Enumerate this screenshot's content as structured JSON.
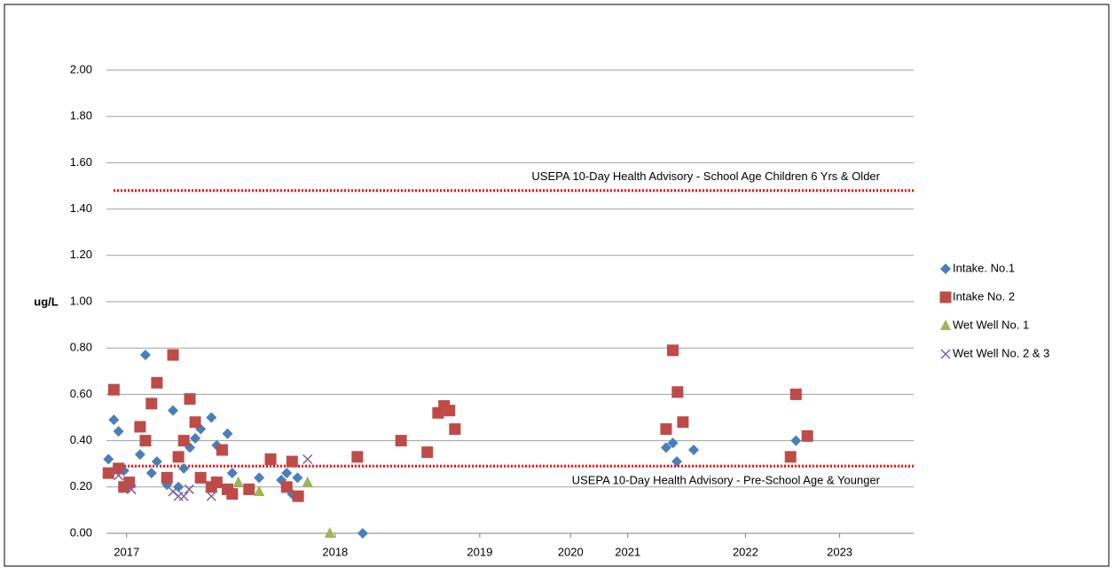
{
  "chart_data": {
    "type": "scatter",
    "y_label": "ug/L",
    "xlim": [
      0,
      120
    ],
    "ylim": [
      0,
      2
    ],
    "xticks": [
      {
        "value": 3,
        "label": "2017"
      },
      {
        "value": 34,
        "label": "2018"
      },
      {
        "value": 55.5,
        "label": "2019"
      },
      {
        "value": 69,
        "label": "2020"
      },
      {
        "value": 77.5,
        "label": "2021"
      },
      {
        "value": 95,
        "label": "2022"
      },
      {
        "value": 109,
        "label": "2023"
      }
    ],
    "yticks": [
      {
        "value": 0,
        "label": "0.00"
      },
      {
        "value": 0.2,
        "label": "0.20"
      },
      {
        "value": 0.4,
        "label": "0.40"
      },
      {
        "value": 0.6,
        "label": "0.60"
      },
      {
        "value": 0.8,
        "label": "0.80"
      },
      {
        "value": 1,
        "label": "1.00"
      },
      {
        "value": 1.2,
        "label": "1.20"
      },
      {
        "value": 1.4,
        "label": "1.40"
      },
      {
        "value": 1.6,
        "label": "1.60"
      },
      {
        "value": 1.8,
        "label": "1.80"
      },
      {
        "value": 2,
        "label": "2.00"
      }
    ],
    "grid": true,
    "legend": "right",
    "reference_lines": [
      {
        "value": 1.48,
        "label": "USEPA 10-Day Health Advisory  - School Age Children 6 Yrs & Older",
        "label_position": "above",
        "color": "#ff0000"
      },
      {
        "value": 0.29,
        "label": "USEPA 10-Day Health Advisory  - Pre-School Age & Younger",
        "label_position": "below",
        "color": "#ff0000"
      }
    ],
    "series": [
      {
        "name": "Intake. No.1",
        "color": "#4a7ebb",
        "marker": "diamond",
        "x": [
          0.3,
          1.1,
          1.8,
          2.6,
          5,
          5.8,
          6.7,
          7.5,
          9.9,
          9,
          10.7,
          11.5,
          12.4,
          13.2,
          14,
          15.6,
          16.4,
          18,
          18.7,
          22.7,
          26,
          26.8,
          27.6,
          28.4,
          38.1,
          83.2,
          84.2,
          84.8,
          87.3,
          102.5
        ],
        "values": [
          0.32,
          0.49,
          0.44,
          0.27,
          0.34,
          0.77,
          0.26,
          0.31,
          0.53,
          0.21,
          0.2,
          0.28,
          0.37,
          0.41,
          0.45,
          0.5,
          0.38,
          0.43,
          0.26,
          0.24,
          0.23,
          0.26,
          0.17,
          0.24,
          0,
          0.37,
          0.39,
          0.31,
          0.36,
          0.4
        ]
      },
      {
        "name": "Intake No. 2",
        "color": "#be4b48",
        "marker": "square",
        "x": [
          0.3,
          1.1,
          1.8,
          2.6,
          3.4,
          5,
          5.8,
          6.7,
          7.5,
          9,
          9.9,
          10.7,
          11.5,
          12.4,
          13.2,
          14,
          15.6,
          16.4,
          17.2,
          18,
          18.7,
          21.2,
          24.4,
          26.8,
          27.6,
          28.5,
          37.3,
          43.8,
          47.7,
          49.3,
          50.2,
          51,
          51.8,
          83.2,
          84.2,
          84.9,
          85.7,
          101.7,
          102.5,
          104.2
        ],
        "values": [
          0.26,
          0.62,
          0.28,
          0.2,
          0.22,
          0.46,
          0.4,
          0.56,
          0.65,
          0.24,
          0.77,
          0.33,
          0.4,
          0.58,
          0.48,
          0.24,
          0.2,
          0.22,
          0.36,
          0.19,
          0.17,
          0.19,
          0.32,
          0.2,
          0.31,
          0.16,
          0.33,
          0.4,
          0.35,
          0.52,
          0.55,
          0.53,
          0.45,
          0.45,
          0.79,
          0.61,
          0.48,
          0.33,
          0.6,
          0.42
        ]
      },
      {
        "name": "Wet Well No. 1",
        "color": "#98b954",
        "marker": "triangle",
        "x": [
          19.6,
          22.7,
          29.9,
          33.2
        ],
        "values": [
          0.22,
          0.18,
          0.22,
          0
        ]
      },
      {
        "name": "Wet Well No. 2 & 3",
        "color": "#7d60a0",
        "marker": "x",
        "x": [
          1.8,
          3.7,
          9.9,
          10.7,
          11.5,
          12.3,
          15.6,
          29.9
        ],
        "values": [
          0.25,
          0.19,
          0.18,
          0.16,
          0.16,
          0.19,
          0.16,
          0.32
        ]
      }
    ]
  }
}
